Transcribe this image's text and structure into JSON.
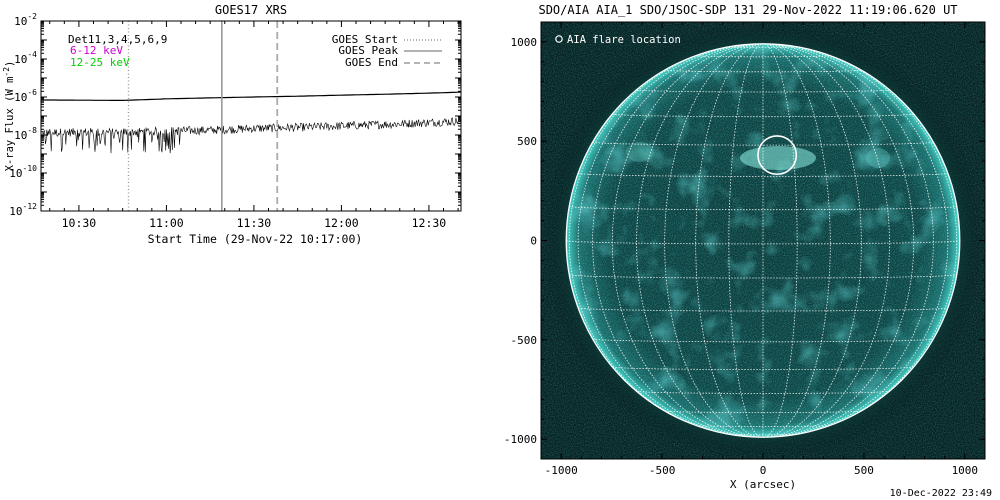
{
  "footer": {
    "timestamp": "10-Dec-2022 23:49"
  },
  "colors": {
    "low_energy": "#d000d0",
    "high_energy": "#00d000",
    "sun_disk": "#0a3c3c",
    "limb": "#30c8c0",
    "grid": "#ffffff"
  },
  "chart_data": [
    {
      "type": "line",
      "title": "GOES17 XRS",
      "xlabel": "Start Time (29-Nov-22 10:17:00)",
      "ylabel": "X-ray Flux (W m",
      "ylabel_sup": "-2",
      "ylabel_end": ")",
      "y_scale": "log",
      "xlim": [
        "10:17",
        "12:41"
      ],
      "ylim": [
        1e-12,
        0.01
      ],
      "x_ticks": [
        "10:30",
        "11:00",
        "11:30",
        "12:00",
        "12:30"
      ],
      "y_ticks": [
        {
          "base": "10",
          "exp": "-2",
          "value": 0.01
        },
        {
          "base": "10",
          "exp": "-4",
          "value": 0.0001
        },
        {
          "base": "10",
          "exp": "-6",
          "value": 1e-06
        },
        {
          "base": "10",
          "exp": "-8",
          "value": 1e-08
        },
        {
          "base": "10",
          "exp": "-10",
          "value": 1e-10
        },
        {
          "base": "10",
          "exp": "-12",
          "value": 1e-12
        }
      ],
      "channel_labels": [
        "Det11,3,4,5,6,9",
        "6-12 keV",
        "12-25 keV"
      ],
      "legend": {
        "position": "top-right",
        "entries": [
          {
            "label": "GOES Start",
            "style": "dotted"
          },
          {
            "label": "GOES Peak",
            "style": "solid"
          },
          {
            "label": "GOES End",
            "style": "dashed"
          }
        ]
      },
      "markers": [
        {
          "name": "GOES Start",
          "time": "10:47",
          "style": "dotted"
        },
        {
          "name": "GOES Peak",
          "time": "11:19",
          "style": "solid"
        },
        {
          "name": "GOES End",
          "time": "11:38",
          "style": "dashed"
        }
      ],
      "series": [
        {
          "style": "solid",
          "x": [
            "10:17",
            "10:30",
            "10:45",
            "11:00",
            "11:15",
            "11:30",
            "11:45",
            "12:00",
            "12:15",
            "12:30",
            "12:41"
          ],
          "y": [
            7e-07,
            6.8e-07,
            6.6e-07,
            8e-07,
            9e-07,
            1e-06,
            1.1e-06,
            1.25e-06,
            1.4e-06,
            1.6e-06,
            1.8e-06
          ]
        },
        {
          "style": "noisy",
          "x": [
            "10:17",
            "10:30",
            "10:45",
            "11:00",
            "11:15",
            "11:30",
            "11:45",
            "12:00",
            "12:15",
            "12:30",
            "12:41"
          ],
          "y": [
            1.3e-08,
            1.4e-08,
            1.4e-08,
            1.6e-08,
            1.8e-08,
            2.2e-08,
            2.5e-08,
            3e-08,
            3.6e-08,
            4.5e-08,
            5.5e-08
          ],
          "dips_until": "11:05",
          "dip_floor": 1e-09
        }
      ]
    },
    {
      "type": "heatmap",
      "title": "SDO/AIA AIA_1 SDO/JSOC-SDP 131 29-Nov-2022 11:19:06.620 UT",
      "xlabel": "X (arcsec)",
      "ylabel": "",
      "xlim": [
        -1100,
        1100
      ],
      "ylim": [
        -1100,
        1100
      ],
      "x_ticks": [
        "-1000",
        "-500",
        "0",
        "500",
        "1000"
      ],
      "y_ticks": [
        "1000",
        "500",
        "0",
        "-500",
        "-1000"
      ],
      "solar_radius_arcsec": 975,
      "grid_spacing_deg": 10,
      "legend": {
        "position": "top-left",
        "entries": [
          {
            "label": "AIA flare location",
            "symbol": "circle"
          }
        ]
      },
      "flare_location": {
        "x": 70,
        "y": 430,
        "radius": 95
      }
    }
  ]
}
